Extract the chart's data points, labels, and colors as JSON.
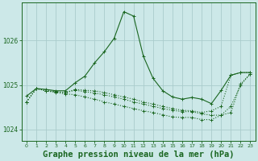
{
  "title": "Graphe pression niveau de la mer (hPa)",
  "background_color": "#cce8e8",
  "grid_color": "#aacccc",
  "line_color": "#1a6620",
  "xlim": [
    -0.5,
    23.5
  ],
  "ylim": [
    1023.75,
    1026.85
  ],
  "yticks": [
    1024,
    1025,
    1026
  ],
  "xticks": [
    0,
    1,
    2,
    3,
    4,
    5,
    6,
    7,
    8,
    9,
    10,
    11,
    12,
    13,
    14,
    15,
    16,
    17,
    18,
    19,
    20,
    21,
    22,
    23
  ],
  "series": [
    [
      1024.75,
      1024.92,
      1024.9,
      1024.87,
      1024.87,
      1025.05,
      1025.2,
      1025.5,
      1025.75,
      1026.05,
      1026.65,
      1026.55,
      1025.65,
      1025.15,
      1024.87,
      1024.73,
      1024.68,
      1024.72,
      1024.68,
      1024.58,
      1024.88,
      1025.22,
      1025.28,
      1025.28
    ],
    [
      1024.62,
      1024.92,
      1024.87,
      1024.85,
      1024.83,
      1024.9,
      1024.88,
      1024.87,
      1024.83,
      1024.78,
      1024.73,
      1024.68,
      1024.62,
      1024.57,
      1024.52,
      1024.47,
      1024.43,
      1024.42,
      1024.38,
      1024.42,
      1024.52,
      1025.22,
      1025.28,
      1025.28
    ],
    [
      1024.62,
      1024.92,
      1024.87,
      1024.85,
      1024.83,
      1024.88,
      1024.85,
      1024.82,
      1024.78,
      1024.73,
      1024.68,
      1024.62,
      1024.57,
      1024.52,
      1024.47,
      1024.43,
      1024.4,
      1024.4,
      1024.35,
      1024.32,
      1024.32,
      1024.38,
      1025.02,
      1025.25
    ],
    [
      1024.62,
      1024.92,
      1024.87,
      1024.83,
      1024.8,
      1024.78,
      1024.73,
      1024.68,
      1024.62,
      1024.57,
      1024.52,
      1024.47,
      1024.42,
      1024.38,
      1024.33,
      1024.28,
      1024.27,
      1024.27,
      1024.22,
      1024.22,
      1024.32,
      1024.52,
      1025.0,
      1025.25
    ]
  ],
  "linestyles": [
    "solid",
    "dotted",
    "dotted",
    "dotted"
  ],
  "title_fontsize": 7.5,
  "tick_fontsize": 5.5,
  "figsize": [
    3.2,
    2.0
  ],
  "dpi": 100
}
